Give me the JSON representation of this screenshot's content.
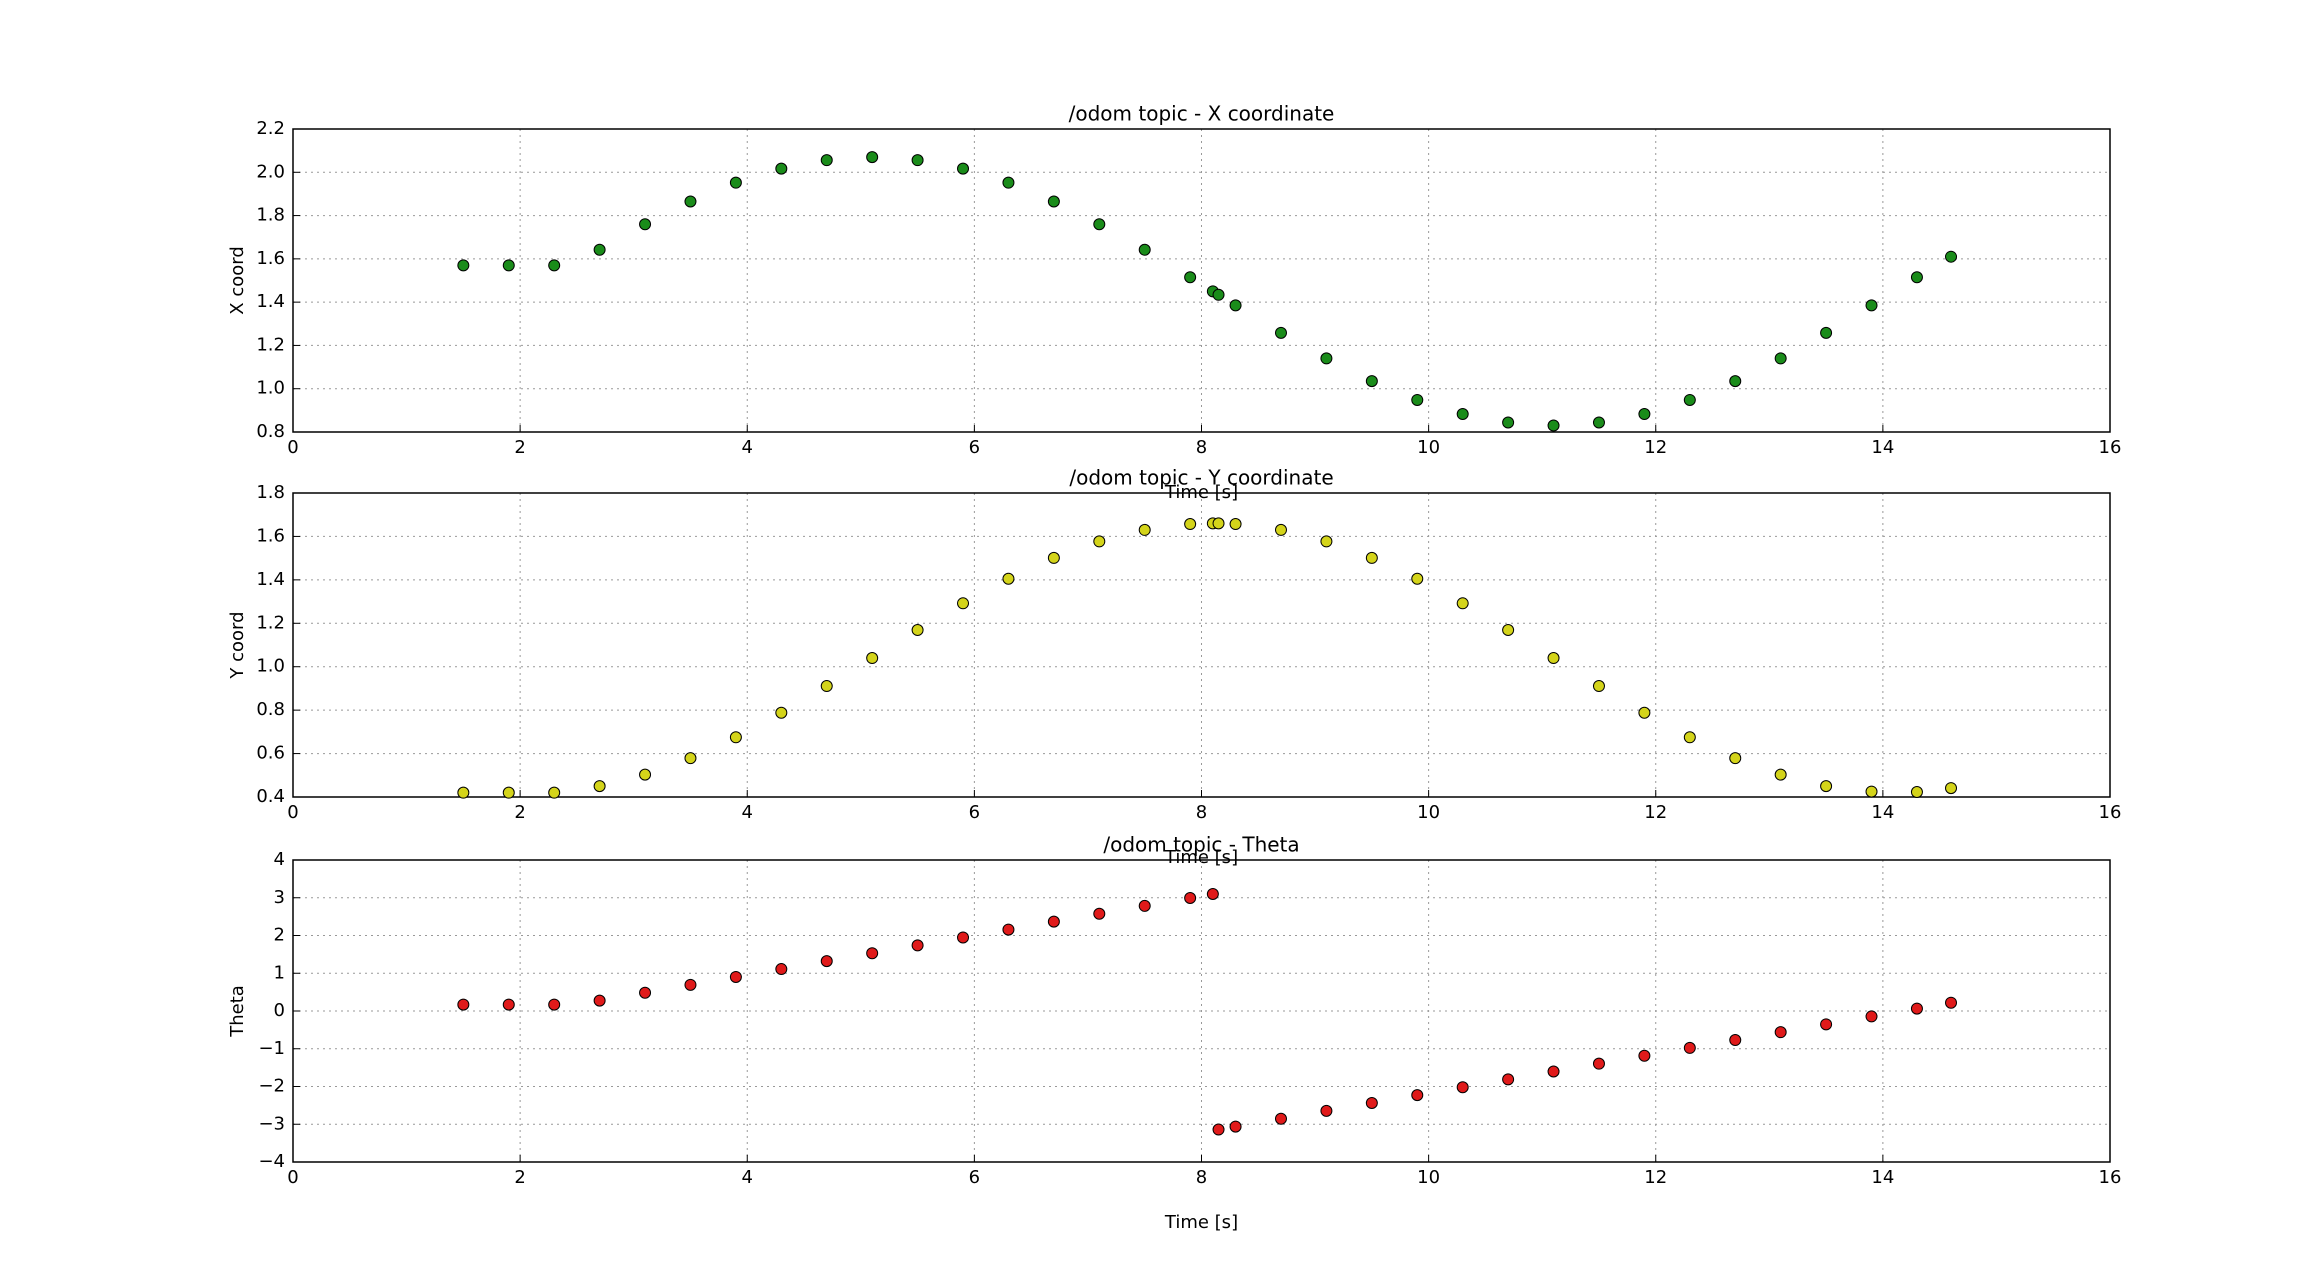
{
  "chart_data": [
    {
      "type": "scatter",
      "title": "/odom topic - X coordinate",
      "x_label": "Time [s]",
      "y_label": "X coord",
      "color": "#1a8c1a",
      "grid": true,
      "xlim": [
        0,
        16
      ],
      "xticks": [
        0,
        2,
        4,
        6,
        8,
        10,
        12,
        14,
        16
      ],
      "ylim": [
        0.8,
        2.2
      ],
      "yticks": [
        {
          "value": 0.8,
          "label": "0.8"
        },
        {
          "value": 1.0,
          "label": "1.0"
        },
        {
          "value": 1.2,
          "label": "1.2"
        },
        {
          "value": 1.4,
          "label": "1.4"
        },
        {
          "value": 1.6,
          "label": "1.6"
        },
        {
          "value": 1.8,
          "label": "1.8"
        },
        {
          "value": 2.0,
          "label": "2.0"
        },
        {
          "value": 2.2,
          "label": "2.2"
        }
      ],
      "x": [
        1.5,
        1.9,
        2.3,
        2.7,
        3.1,
        3.5,
        3.9,
        4.3,
        4.7,
        5.1,
        5.5,
        5.9,
        6.3,
        6.7,
        7.1,
        7.5,
        7.9,
        8.1,
        8.15,
        8.3,
        8.7,
        9.1,
        9.5,
        9.9,
        10.3,
        10.7,
        11.1,
        11.5,
        11.9,
        12.3,
        12.7,
        13.1,
        13.5,
        13.9,
        14.3,
        14.6
      ],
      "values": [
        1.57,
        1.57,
        1.57,
        1.642,
        1.76,
        1.865,
        1.952,
        2.017,
        2.056,
        2.07,
        2.056,
        2.017,
        1.952,
        1.865,
        1.76,
        1.642,
        1.515,
        1.45,
        1.434,
        1.385,
        1.258,
        1.14,
        1.035,
        0.948,
        0.883,
        0.844,
        0.83,
        0.844,
        0.883,
        0.948,
        1.035,
        1.14,
        1.258,
        1.385,
        1.515,
        1.61
      ]
    },
    {
      "type": "scatter",
      "title": "/odom topic - Y coordinate",
      "x_label": "Time [s]",
      "y_label": "Y coord",
      "color": "#d4d41a",
      "grid": true,
      "xlim": [
        0,
        16
      ],
      "xticks": [
        0,
        2,
        4,
        6,
        8,
        10,
        12,
        14,
        16
      ],
      "ylim": [
        0.4,
        1.8
      ],
      "yticks": [
        0.4,
        0.6,
        0.8,
        {
          "value": 1.0,
          "label": "1.0"
        },
        1.2,
        1.4,
        1.6,
        1.8
      ],
      "x": [
        1.5,
        1.9,
        2.3,
        2.7,
        3.1,
        3.5,
        3.9,
        4.3,
        4.7,
        5.1,
        5.5,
        5.9,
        6.3,
        6.7,
        7.1,
        7.5,
        7.9,
        8.1,
        8.15,
        8.3,
        8.7,
        9.1,
        9.5,
        9.9,
        10.3,
        10.7,
        11.1,
        11.5,
        11.9,
        12.3,
        12.7,
        13.1,
        13.5,
        13.9,
        14.3,
        14.6
      ],
      "values": [
        0.42,
        0.42,
        0.42,
        0.45,
        0.503,
        0.579,
        0.675,
        0.788,
        0.911,
        1.04,
        1.169,
        1.292,
        1.405,
        1.501,
        1.577,
        1.63,
        1.657,
        1.66,
        1.66,
        1.657,
        1.63,
        1.577,
        1.501,
        1.405,
        1.292,
        1.169,
        1.04,
        0.911,
        0.788,
        0.675,
        0.579,
        0.503,
        0.45,
        0.425,
        0.423,
        0.441
      ]
    },
    {
      "type": "scatter",
      "title": "/odom topic - Theta",
      "x_label": "Time [s]",
      "y_label": "Theta",
      "color": "#e01a1a",
      "grid": true,
      "xlim": [
        0,
        16
      ],
      "xticks": [
        0,
        2,
        4,
        6,
        8,
        10,
        12,
        14,
        16
      ],
      "ylim": [
        -4,
        4
      ],
      "yticks": [
        {
          "value": -4,
          "label": "−4"
        },
        {
          "value": -3,
          "label": "−3"
        },
        {
          "value": -2,
          "label": "−2"
        },
        {
          "value": -1,
          "label": "−1"
        },
        0,
        1,
        2,
        3,
        4
      ],
      "x": [
        1.5,
        1.9,
        2.3,
        2.7,
        3.1,
        3.5,
        3.9,
        4.3,
        4.7,
        5.1,
        5.5,
        5.9,
        6.3,
        6.7,
        7.1,
        7.5,
        7.9,
        8.1,
        8.15,
        8.3,
        8.7,
        9.1,
        9.5,
        9.9,
        10.3,
        10.7,
        11.1,
        11.5,
        11.9,
        12.3,
        12.7,
        13.1,
        13.5,
        13.9,
        14.3,
        14.6
      ],
      "values": [
        0.17,
        0.17,
        0.17,
        0.275,
        0.484,
        0.693,
        0.902,
        1.111,
        1.321,
        1.53,
        1.739,
        1.948,
        2.157,
        2.367,
        2.576,
        2.785,
        2.994,
        3.099,
        -3.14,
        -3.062,
        -2.854,
        -2.645,
        -2.437,
        -2.228,
        -2.02,
        -1.811,
        -1.603,
        -1.395,
        -1.186,
        -0.978,
        -0.769,
        -0.561,
        -0.353,
        -0.144,
        0.064,
        0.22
      ]
    }
  ]
}
